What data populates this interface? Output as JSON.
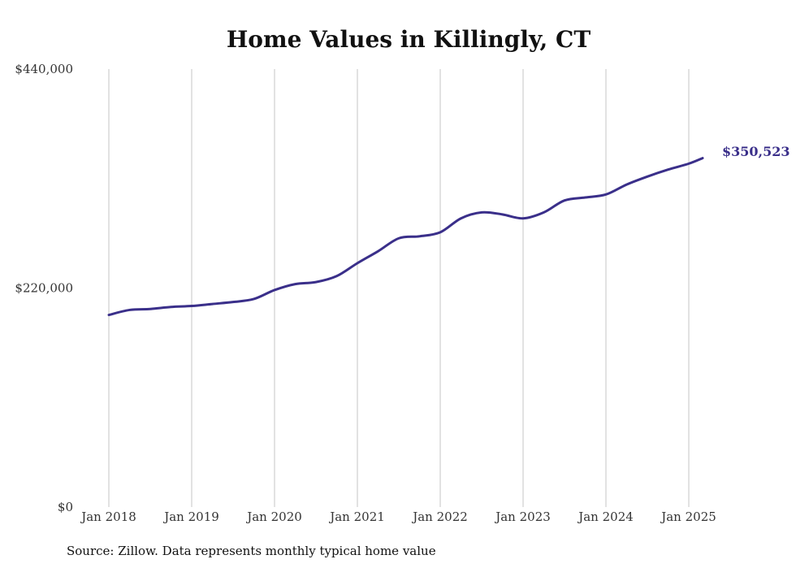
{
  "chart_data": {
    "type": "line",
    "title": "Home Values in Killingly, CT",
    "xlabel": "",
    "ylabel": "",
    "ylim": [
      0,
      440000
    ],
    "y_ticks": [
      0,
      220000,
      440000
    ],
    "y_tick_labels": [
      "$0",
      "$220,000",
      "$440,000"
    ],
    "x_ticks": [
      "2018-01",
      "2019-01",
      "2020-01",
      "2021-01",
      "2022-01",
      "2023-01",
      "2024-01",
      "2025-01"
    ],
    "x_tick_labels": [
      "Jan 2018",
      "Jan 2019",
      "Jan 2020",
      "Jan 2021",
      "Jan 2022",
      "Jan 2023",
      "Jan 2024",
      "Jan 2025"
    ],
    "grid": "vertical",
    "line_color": "#3a2f8a",
    "end_label": "$350,523",
    "source": "Source: Zillow. Data represents monthly typical home value",
    "series": [
      {
        "x": [
          "2018-01",
          "2018-04",
          "2018-07",
          "2018-10",
          "2019-01",
          "2019-04",
          "2019-07",
          "2019-10",
          "2020-01",
          "2020-04",
          "2020-07",
          "2020-10",
          "2021-01",
          "2021-04",
          "2021-07",
          "2021-10",
          "2022-01",
          "2022-04",
          "2022-07",
          "2022-10",
          "2023-01",
          "2023-04",
          "2023-07",
          "2023-10",
          "2024-01",
          "2024-04",
          "2024-07",
          "2024-10",
          "2025-01",
          "2025-03"
        ],
        "values": [
          193000,
          198000,
          199000,
          201000,
          202000,
          204000,
          206000,
          209000,
          218000,
          224000,
          226000,
          232000,
          245000,
          257000,
          270000,
          272000,
          276000,
          290000,
          296000,
          294000,
          290000,
          296000,
          308000,
          311000,
          314000,
          324000,
          332000,
          339000,
          345000,
          350523
        ]
      }
    ]
  }
}
